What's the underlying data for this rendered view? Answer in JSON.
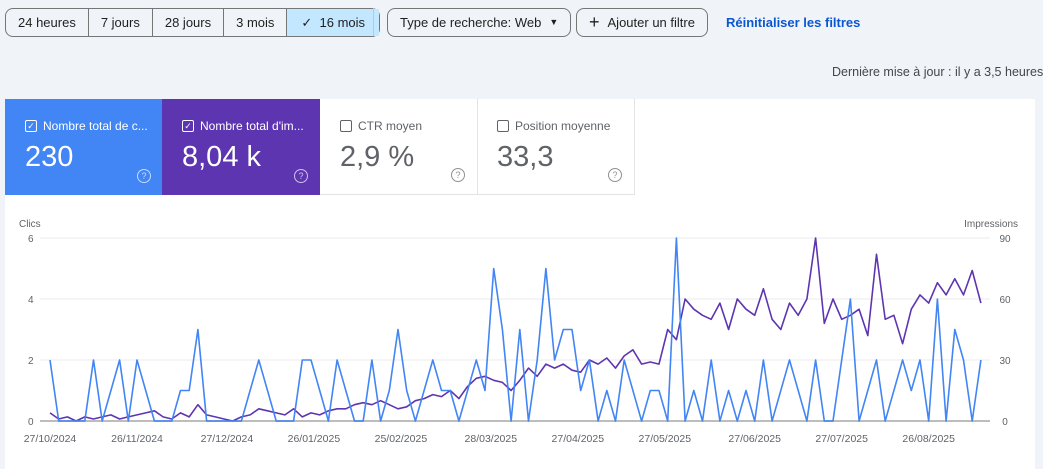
{
  "toolbar": {
    "ranges": [
      "24 heures",
      "7 jours",
      "28 jours",
      "3 mois",
      "16 mois"
    ],
    "active_range": "16 mois",
    "search_type": "Type de recherche: Web",
    "add_filter": "Ajouter un filtre",
    "reset": "Réinitialiser les filtres"
  },
  "last_update": "Dernière mise à jour : il y a 3,5 heures",
  "metrics": [
    {
      "label": "Nombre total de c...",
      "value": "230",
      "checked": true,
      "color": "#4285f4"
    },
    {
      "label": "Nombre total d'im...",
      "value": "8,04 k",
      "checked": true,
      "color": "#5e35b1"
    },
    {
      "label": "CTR moyen",
      "value": "2,9 %",
      "checked": false
    },
    {
      "label": "Position moyenne",
      "value": "33,3",
      "checked": false
    }
  ],
  "chart_data": {
    "type": "line",
    "left_axis_label": "Clics",
    "right_axis_label": "Impressions",
    "left_ticks": [
      "0",
      "2",
      "4",
      "6"
    ],
    "right_ticks": [
      "0",
      "30",
      "60",
      "90"
    ],
    "left_ylim": [
      0,
      6
    ],
    "right_ylim": [
      0,
      90
    ],
    "x_tick_labels": [
      "27/10/2024",
      "26/11/2024",
      "27/12/2024",
      "26/01/2025",
      "25/02/2025",
      "28/03/2025",
      "27/04/2025",
      "27/05/2025",
      "27/06/2025",
      "27/07/2025",
      "26/08/2025"
    ],
    "x_tick_days": [
      0,
      30,
      61,
      91,
      121,
      152,
      182,
      212,
      243,
      273,
      303
    ],
    "sample_interval_days": 3,
    "series": [
      {
        "name": "Clics",
        "axis": "left",
        "color": "#4285f4",
        "values": [
          2,
          0,
          0,
          0,
          0,
          2,
          0,
          1,
          2,
          0,
          2,
          1,
          0,
          0,
          0,
          1,
          1,
          3,
          0,
          0,
          0,
          0,
          0,
          1,
          2,
          1,
          0,
          0,
          0,
          2,
          2,
          1,
          0,
          2,
          1,
          0,
          0,
          2,
          0,
          1,
          3,
          1,
          0,
          1,
          2,
          1,
          1,
          0,
          1,
          2,
          1,
          5,
          3,
          0,
          3,
          0,
          2,
          5,
          2,
          3,
          3,
          1,
          2,
          0,
          1,
          0,
          2,
          1,
          0,
          1,
          1,
          0,
          6,
          0,
          1,
          0,
          2,
          0,
          1,
          0,
          1,
          0,
          2,
          0,
          1,
          2,
          1,
          0,
          2,
          0,
          0,
          2,
          4,
          0,
          1,
          2,
          0,
          1,
          2,
          1,
          2,
          0,
          4,
          0,
          3,
          2,
          0,
          2
        ]
      },
      {
        "name": "Impressions",
        "axis": "right",
        "color": "#5e35b1",
        "values": [
          4,
          1,
          2,
          0,
          2,
          1,
          2,
          3,
          1,
          2,
          3,
          4,
          5,
          2,
          1,
          4,
          2,
          8,
          3,
          2,
          1,
          0,
          2,
          3,
          6,
          5,
          4,
          3,
          6,
          2,
          4,
          3,
          5,
          6,
          6,
          8,
          9,
          8,
          10,
          8,
          6,
          7,
          10,
          11,
          13,
          12,
          15,
          11,
          17,
          21,
          22,
          20,
          19,
          15,
          20,
          26,
          22,
          28,
          26,
          28,
          25,
          24,
          30,
          28,
          31,
          26,
          32,
          35,
          28,
          29,
          28,
          45,
          40,
          60,
          55,
          52,
          50,
          58,
          45,
          60,
          55,
          52,
          65,
          50,
          45,
          58,
          52,
          60,
          90,
          48,
          60,
          50,
          52,
          55,
          42,
          82,
          50,
          52,
          38,
          55,
          62,
          58,
          68,
          62,
          70,
          62,
          74,
          58
        ]
      }
    ]
  }
}
